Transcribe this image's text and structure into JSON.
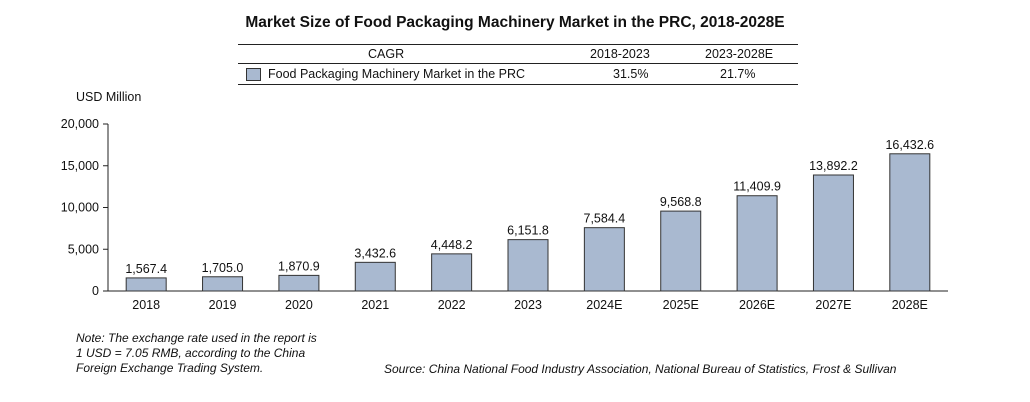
{
  "title": "Market Size of Food Packaging Machinery Market in the PRC, 2018-2028E",
  "cagr_table": {
    "header_label": "CAGR",
    "period1": "2018-2023",
    "period2": "2023-2028E",
    "series_name": "Food Packaging Machinery Market in the PRC",
    "value1": "31.5%",
    "value2": "21.7%"
  },
  "y_unit": "USD Million",
  "note": {
    "line1": "Note: The exchange rate used in the report is",
    "line2": "1 USD = 7.05 RMB, according to the China",
    "line3": "Foreign Exchange Trading System."
  },
  "source": "Source: China National Food Industry Association, National Bureau of Statistics, Frost & Sullivan",
  "colors": {
    "bar": "#a9b9d0",
    "bar_stroke": "#333333"
  },
  "chart_data": {
    "type": "bar",
    "categories": [
      "2018",
      "2019",
      "2020",
      "2021",
      "2022",
      "2023",
      "2024E",
      "2025E",
      "2026E",
      "2027E",
      "2028E"
    ],
    "values": [
      1567.4,
      1705.0,
      1870.9,
      3432.6,
      4448.2,
      6151.8,
      7584.4,
      9568.8,
      11409.9,
      13892.2,
      16432.6
    ],
    "value_labels": [
      "1,567.4",
      "1,705.0",
      "1,870.9",
      "3,432.6",
      "4,448.2",
      "6,151.8",
      "7,584.4",
      "9,568.8",
      "11,409.9",
      "13,892.2",
      "16,432.6"
    ],
    "yticks": [
      0,
      5000,
      10000,
      15000,
      20000
    ],
    "ytick_labels": [
      "0",
      "5,000",
      "10,000",
      "15,000",
      "20,000"
    ],
    "ylim": [
      0,
      20000
    ],
    "ylabel": "USD Million",
    "grid": false,
    "series": [
      {
        "name": "Food Packaging Machinery Market in the PRC",
        "values": [
          1567.4,
          1705.0,
          1870.9,
          3432.6,
          4448.2,
          6151.8,
          7584.4,
          9568.8,
          11409.9,
          13892.2,
          16432.6
        ]
      }
    ]
  }
}
